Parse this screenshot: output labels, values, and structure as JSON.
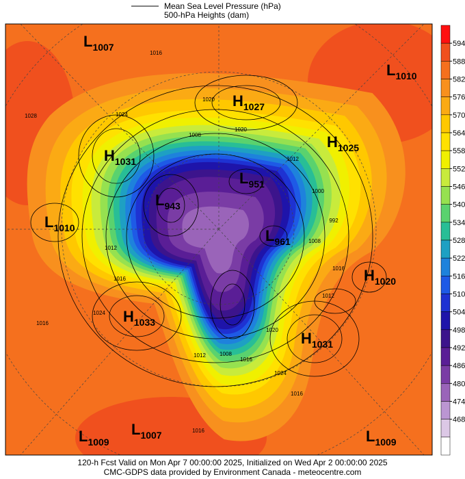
{
  "legend": {
    "line_label": "Mean Sea Level Pressure (hPa)",
    "fill_label": "500-hPa Heights (dam)"
  },
  "colorbar": {
    "ticks": [
      594,
      588,
      582,
      576,
      570,
      564,
      558,
      552,
      546,
      540,
      534,
      528,
      522,
      516,
      510,
      504,
      498,
      492,
      486,
      480,
      474,
      468
    ],
    "colors": [
      "#ff1010",
      "#f0501e",
      "#f5701e",
      "#f8901e",
      "#fbaa14",
      "#ffc800",
      "#ffe100",
      "#f0f000",
      "#c8eb3c",
      "#96e150",
      "#5ad26e",
      "#28be96",
      "#1ea0c3",
      "#1e82dc",
      "#1e5ae6",
      "#1e32d2",
      "#1e14aa",
      "#3c148c",
      "#5a1e96",
      "#7a3ca5",
      "#9a64b9",
      "#bb96d2",
      "#dcc8e6",
      "#ffffff"
    ]
  },
  "centers": [
    {
      "type": "L",
      "value": 1007
    },
    {
      "type": "L",
      "value": 1010
    },
    {
      "type": "H",
      "value": 1027
    },
    {
      "type": "H",
      "value": 1025
    },
    {
      "type": "H",
      "value": 1031
    },
    {
      "type": "L",
      "value": 951
    },
    {
      "type": "L",
      "value": 943
    },
    {
      "type": "L",
      "value": 1010
    },
    {
      "type": "L",
      "value": 961
    },
    {
      "type": "H",
      "value": 1020
    },
    {
      "type": "H",
      "value": 1033
    },
    {
      "type": "H",
      "value": 1031
    },
    {
      "type": "L",
      "value": 1009
    },
    {
      "type": "L",
      "value": 1007
    },
    {
      "type": "L",
      "value": 1009
    }
  ],
  "contour_labels": [
    1016,
    1020,
    1024,
    1028,
    1008,
    1020,
    1012,
    1000,
    992,
    1008,
    1016,
    1012,
    1016,
    1024,
    1016,
    1012,
    1008,
    1016,
    1024,
    1020,
    1012,
    1016,
    1016
  ],
  "footer": {
    "valid": "120-h Fcst Valid on Mon Apr  7 00:00:00 2025, Initialized on Wed Apr  2 00:00:00 2025",
    "credit": "CMC-GDPS data provided by Environment Canada - meteocentre.com"
  }
}
